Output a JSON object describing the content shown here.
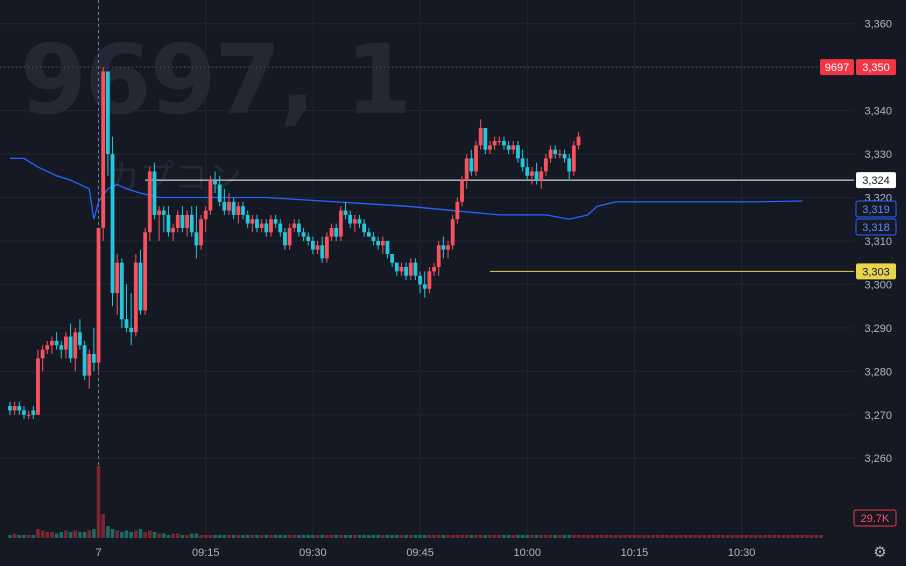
{
  "watermark": {
    "code": "9697, 1",
    "name": "カプコン"
  },
  "colors": {
    "background": "#151924",
    "grid": "#222633",
    "up": "#f23645",
    "down": "#22ab94",
    "up_body": "#f7525f",
    "down_body": "#26c6da",
    "axis_text": "#b2b5be",
    "ma_line": "#2962ff",
    "vol_up": "#7a2630",
    "vol_down": "#1b6b62",
    "line_white": "#ffffff",
    "line_yellow": "#e8d44d",
    "session_marker": "#5d7fb0",
    "high_line": "#9b3a44"
  },
  "settings_icon": "gear-icon",
  "chart_data": {
    "type": "candlestick",
    "ylim": [
      3252,
      3362
    ],
    "y_ticks": [
      {
        "v": 3260,
        "label": "3,260"
      },
      {
        "v": 3270,
        "label": "3,270"
      },
      {
        "v": 3280,
        "label": "3,280"
      },
      {
        "v": 3290,
        "label": "3,290"
      },
      {
        "v": 3300,
        "label": "3,300"
      },
      {
        "v": 3310,
        "label": "3,310"
      },
      {
        "v": 3320,
        "label": "3,320"
      },
      {
        "v": 3330,
        "label": "3,330"
      },
      {
        "v": 3340,
        "label": "3,340"
      },
      {
        "v": 3350,
        "label": "3,350"
      },
      {
        "v": 3360,
        "label": "3,360"
      }
    ],
    "x_ticks": [
      {
        "i": 19,
        "label": "7"
      },
      {
        "i": 42,
        "label": "09:15"
      },
      {
        "i": 65,
        "label": "09:30"
      },
      {
        "i": 88,
        "label": "09:45"
      },
      {
        "i": 111,
        "label": "10:00"
      },
      {
        "i": 134,
        "label": "10:15"
      },
      {
        "i": 157,
        "label": "10:30"
      }
    ],
    "session_break_index": 19,
    "candles": [
      [
        3272,
        3273,
        3270,
        3271
      ],
      [
        3271,
        3273,
        3270,
        3272
      ],
      [
        3272,
        3273,
        3270,
        3271
      ],
      [
        3271,
        3272,
        3269,
        3270
      ],
      [
        3270,
        3271,
        3269,
        3270
      ],
      [
        3271,
        3272,
        3269,
        3270
      ],
      [
        3270,
        3285,
        3270,
        3283
      ],
      [
        3283,
        3286,
        3280,
        3285
      ],
      [
        3285,
        3287,
        3284,
        3286
      ],
      [
        3286,
        3288,
        3284,
        3287
      ],
      [
        3287,
        3289,
        3285,
        3286
      ],
      [
        3286,
        3287,
        3283,
        3285
      ],
      [
        3285,
        3289,
        3283,
        3288
      ],
      [
        3288,
        3291,
        3282,
        3283
      ],
      [
        3283,
        3290,
        3280,
        3289
      ],
      [
        3289,
        3292,
        3285,
        3286
      ],
      [
        3286,
        3287,
        3278,
        3279
      ],
      [
        3279,
        3285,
        3276,
        3284
      ],
      [
        3284,
        3290,
        3280,
        3282
      ],
      [
        3282,
        3312,
        3280,
        3313
      ],
      [
        3313,
        3350,
        3310,
        3349
      ],
      [
        3349,
        3349,
        3325,
        3330
      ],
      [
        3330,
        3334,
        3295,
        3298
      ],
      [
        3298,
        3307,
        3293,
        3305
      ],
      [
        3305,
        3306,
        3290,
        3292
      ],
      [
        3292,
        3300,
        3289,
        3290
      ],
      [
        3290,
        3298,
        3286,
        3289
      ],
      [
        3289,
        3307,
        3288,
        3305
      ],
      [
        3305,
        3308,
        3293,
        3294
      ],
      [
        3294,
        3313,
        3293,
        3312
      ],
      [
        3312,
        3327,
        3310,
        3326
      ],
      [
        3326,
        3328,
        3315,
        3316
      ],
      [
        3316,
        3318,
        3310,
        3317
      ],
      [
        3317,
        3318,
        3312,
        3316
      ],
      [
        3316,
        3318,
        3311,
        3312
      ],
      [
        3312,
        3314,
        3310,
        3313
      ],
      [
        3313,
        3317,
        3312,
        3316
      ],
      [
        3316,
        3318,
        3312,
        3313
      ],
      [
        3313,
        3317,
        3311,
        3316
      ],
      [
        3316,
        3318,
        3311,
        3312
      ],
      [
        3312,
        3318,
        3306,
        3309
      ],
      [
        3309,
        3316,
        3308,
        3315
      ],
      [
        3315,
        3318,
        3312,
        3317
      ],
      [
        3317,
        3325,
        3316,
        3324
      ],
      [
        3324,
        3326,
        3321,
        3323
      ],
      [
        3323,
        3325,
        3318,
        3319
      ],
      [
        3319,
        3322,
        3316,
        3317
      ],
      [
        3317,
        3321,
        3316,
        3319
      ],
      [
        3319,
        3320,
        3315,
        3316
      ],
      [
        3316,
        3319,
        3314,
        3318
      ],
      [
        3318,
        3319,
        3315,
        3316
      ],
      [
        3316,
        3317,
        3313,
        3314
      ],
      [
        3314,
        3316,
        3312,
        3315
      ],
      [
        3315,
        3316,
        3312,
        3313
      ],
      [
        3313,
        3315,
        3312,
        3314
      ],
      [
        3314,
        3315,
        3311,
        3312
      ],
      [
        3312,
        3316,
        3311,
        3315
      ],
      [
        3315,
        3316,
        3313,
        3314
      ],
      [
        3314,
        3315,
        3311,
        3312
      ],
      [
        3312,
        3313,
        3308,
        3309
      ],
      [
        3309,
        3314,
        3308,
        3313
      ],
      [
        3313,
        3315,
        3312,
        3314
      ],
      [
        3314,
        3315,
        3311,
        3312
      ],
      [
        3312,
        3313,
        3310,
        3311
      ],
      [
        3311,
        3312,
        3309,
        3310
      ],
      [
        3310,
        3311,
        3307,
        3308
      ],
      [
        3308,
        3310,
        3307,
        3309
      ],
      [
        3309,
        3311,
        3305,
        3306
      ],
      [
        3306,
        3312,
        3305,
        3311
      ],
      [
        3311,
        3314,
        3310,
        3313
      ],
      [
        3313,
        3314,
        3310,
        3311
      ],
      [
        3311,
        3318,
        3310,
        3317
      ],
      [
        3317,
        3319,
        3315,
        3316
      ],
      [
        3316,
        3317,
        3313,
        3314
      ],
      [
        3314,
        3316,
        3312,
        3315
      ],
      [
        3315,
        3316,
        3313,
        3314
      ],
      [
        3314,
        3315,
        3311,
        3312
      ],
      [
        3312,
        3313,
        3311,
        3311
      ],
      [
        3311,
        3312,
        3309,
        3310
      ],
      [
        3310,
        3311,
        3308,
        3309
      ],
      [
        3309,
        3311,
        3307,
        3310
      ],
      [
        3310,
        3310,
        3306,
        3307
      ],
      [
        3307,
        3307,
        3304,
        3305
      ],
      [
        3305,
        3305,
        3302,
        3303
      ],
      [
        3303,
        3305,
        3302,
        3304
      ],
      [
        3304,
        3305,
        3301,
        3302
      ],
      [
        3302,
        3306,
        3301,
        3305
      ],
      [
        3305,
        3306,
        3301,
        3302
      ],
      [
        3302,
        3303,
        3298,
        3300
      ],
      [
        3300,
        3303,
        3297,
        3299
      ],
      [
        3299,
        3304,
        3298,
        3303
      ],
      [
        3303,
        3305,
        3302,
        3304
      ],
      [
        3304,
        3310,
        3302,
        3309
      ],
      [
        3309,
        3311,
        3306,
        3308
      ],
      [
        3308,
        3310,
        3306,
        3309
      ],
      [
        3309,
        3316,
        3308,
        3315
      ],
      [
        3315,
        3320,
        3314,
        3319
      ],
      [
        3319,
        3325,
        3318,
        3324
      ],
      [
        3324,
        3330,
        3322,
        3329
      ],
      [
        3329,
        3331,
        3325,
        3326
      ],
      [
        3326,
        3333,
        3325,
        3332
      ],
      [
        3332,
        3338,
        3331,
        3336
      ],
      [
        3336,
        3336,
        3330,
        3331
      ],
      [
        3331,
        3333,
        3330,
        3332
      ],
      [
        3332,
        3334,
        3331,
        3333
      ],
      [
        3333,
        3334,
        3332,
        3333
      ],
      [
        3333,
        3334,
        3331,
        3332
      ],
      [
        3332,
        3333,
        3330,
        3331
      ],
      [
        3331,
        3333,
        3330,
        3332
      ],
      [
        3332,
        3333,
        3328,
        3329
      ],
      [
        3329,
        3331,
        3326,
        3327
      ],
      [
        3327,
        3329,
        3324,
        3325
      ],
      [
        3325,
        3327,
        3323,
        3326
      ],
      [
        3326,
        3328,
        3323,
        3324
      ],
      [
        3324,
        3327,
        3322,
        3326
      ],
      [
        3326,
        3330,
        3325,
        3329
      ],
      [
        3329,
        3332,
        3328,
        3331
      ],
      [
        3331,
        3332,
        3329,
        3330
      ],
      [
        3330,
        3331,
        3329,
        3330
      ],
      [
        3330,
        3331,
        3328,
        3329
      ],
      [
        3329,
        3330,
        3324,
        3326
      ],
      [
        3326,
        3333,
        3325,
        3332
      ],
      [
        3332,
        3335,
        3331,
        3334
      ]
    ],
    "volumes": [
      0.02,
      0.03,
      0.02,
      0.02,
      0.02,
      0.02,
      0.06,
      0.05,
      0.04,
      0.04,
      0.03,
      0.04,
      0.05,
      0.04,
      0.05,
      0.04,
      0.04,
      0.05,
      0.06,
      0.48,
      0.16,
      0.08,
      0.06,
      0.05,
      0.04,
      0.05,
      0.04,
      0.05,
      0.06,
      0.04,
      0.05,
      0.04,
      0.03,
      0.03,
      0.02,
      0.03,
      0.03,
      0.02,
      0.02,
      0.03,
      0.03,
      0.02,
      0.02,
      0.02,
      0.02,
      0.02,
      0.02,
      0.02,
      0.02,
      0.02,
      0.02,
      0.02,
      0.02,
      0.02,
      0.02,
      0.02,
      0.02,
      0.02,
      0.02,
      0.02,
      0.02,
      0.02,
      0.02,
      0.02,
      0.02,
      0.02,
      0.02,
      0.02,
      0.02,
      0.02,
      0.02,
      0.02,
      0.02,
      0.02,
      0.02,
      0.02,
      0.02,
      0.02,
      0.02,
      0.02,
      0.02,
      0.02,
      0.02,
      0.02,
      0.02,
      0.02,
      0.02,
      0.02,
      0.02,
      0.02,
      0.02,
      0.02,
      0.02,
      0.02,
      0.02,
      0.02,
      0.02,
      0.02,
      0.02,
      0.02,
      0.02,
      0.02,
      0.02,
      0.02,
      0.02,
      0.02,
      0.02,
      0.02,
      0.02,
      0.02,
      0.02,
      0.02,
      0.02,
      0.02,
      0.02,
      0.02,
      0.02,
      0.02,
      0.02,
      0.02,
      0.02,
      0.02,
      0.02,
      0.02,
      0.02,
      0.02,
      0.02,
      0.02,
      0.02,
      0.02,
      0.02,
      0.02,
      0.02,
      0.02,
      0.02,
      0.02,
      0.02,
      0.02,
      0.02,
      0.02,
      0.02,
      0.02,
      0.02,
      0.02,
      0.02,
      0.02,
      0.02,
      0.02,
      0.02,
      0.02,
      0.02,
      0.02,
      0.02,
      0.02,
      0.02,
      0.02,
      0.02,
      0.02,
      0.02,
      0.02,
      0.02,
      0.02,
      0.02,
      0.02,
      0.02,
      0.02,
      0.02,
      0.02,
      0.02,
      0.02,
      0.02,
      0.02,
      0.02,
      0.02,
      0.02
    ],
    "ma_line": [
      [
        0,
        3329
      ],
      [
        3,
        3329
      ],
      [
        6,
        3327
      ],
      [
        10,
        3325
      ],
      [
        13,
        3324
      ],
      [
        15,
        3323
      ],
      [
        17,
        3322
      ],
      [
        18,
        3315
      ],
      [
        19,
        3319
      ],
      [
        21,
        3322
      ],
      [
        23,
        3323
      ],
      [
        25,
        3322
      ],
      [
        28,
        3321
      ],
      [
        32,
        3320
      ],
      [
        38,
        3320
      ],
      [
        45,
        3320
      ],
      [
        55,
        3320
      ],
      [
        70,
        3319
      ],
      [
        85,
        3318
      ],
      [
        95,
        3317
      ],
      [
        105,
        3316
      ],
      [
        115,
        3316
      ],
      [
        120,
        3315
      ],
      [
        124,
        3316
      ],
      [
        126,
        3318
      ],
      [
        130,
        3319
      ],
      [
        140,
        3319
      ],
      [
        150,
        3319
      ],
      [
        160,
        3319
      ],
      [
        170,
        3319.2
      ]
    ],
    "horizontal_lines": [
      {
        "name": "white",
        "value": 3324,
        "label": "3,324",
        "from_index": 29
      },
      {
        "name": "yellow",
        "value": 3303,
        "label": "3,303",
        "from_index": 103
      },
      {
        "name": "high",
        "value": 3350,
        "label": "3,350",
        "from_index": 0
      }
    ],
    "price_badges": [
      {
        "name": "symbol-badge",
        "label": "9697"
      },
      {
        "name": "high-price-badge",
        "label": "3,350"
      },
      {
        "name": "white-line-badge",
        "label": "3,324"
      },
      {
        "name": "ma-badge-1",
        "label": "3,319"
      },
      {
        "name": "ma-badge-2",
        "label": "3,318"
      },
      {
        "name": "yellow-line-badge",
        "label": "3,303"
      },
      {
        "name": "volume-badge",
        "label": "29.7K"
      }
    ]
  }
}
